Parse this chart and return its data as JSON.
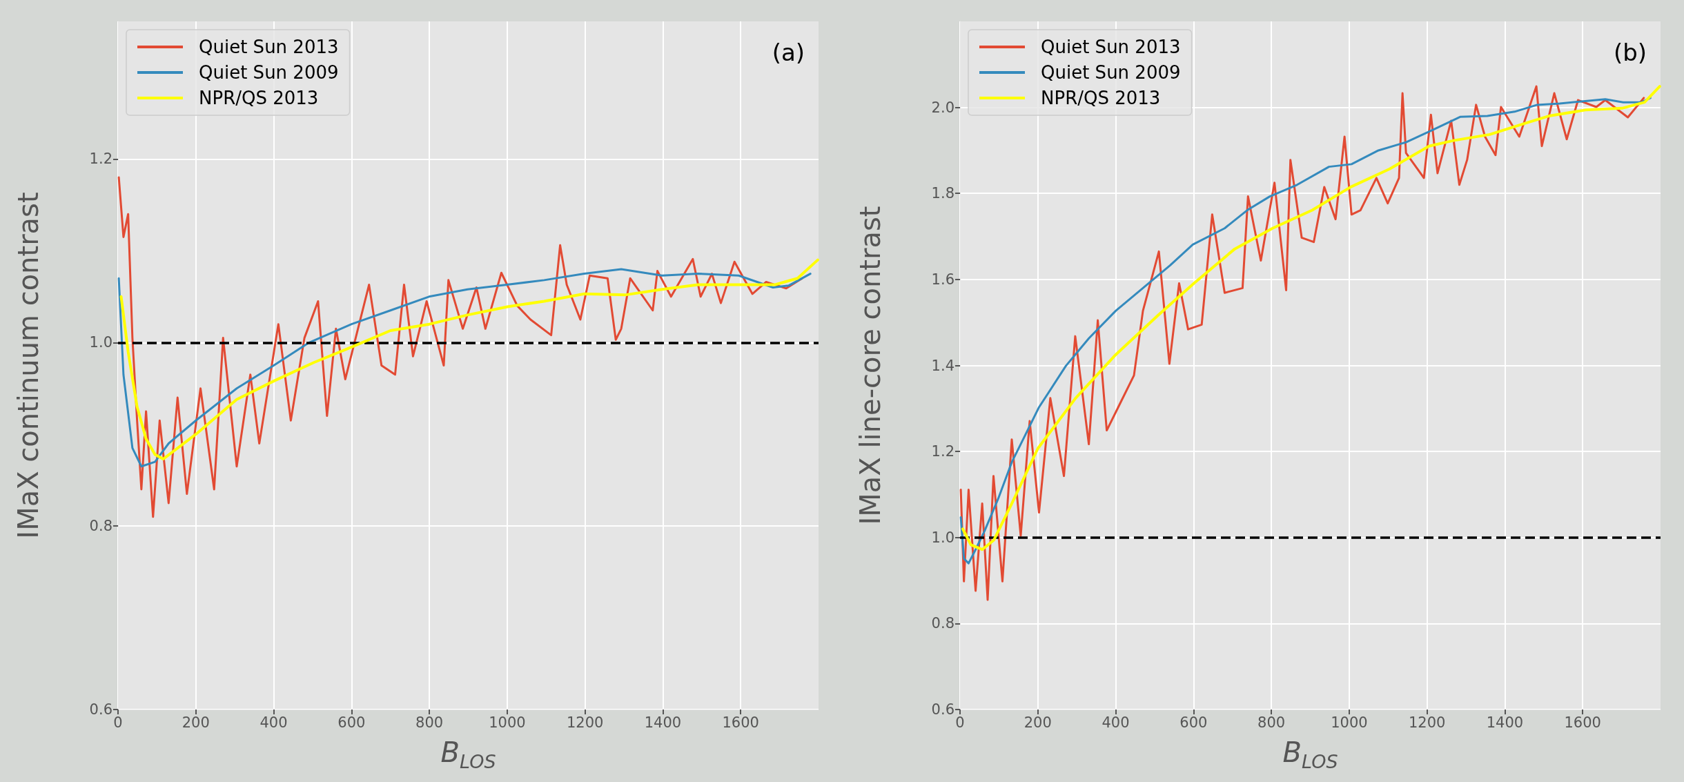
{
  "chart_data": [
    {
      "type": "line",
      "ylabel": "IMaX continuum contrast",
      "xlabel": "B$_{LOS}$",
      "annotations": [
        "(a)"
      ],
      "legend": "top left",
      "grid": true,
      "line_style": "solid",
      "xlim": [
        0,
        1800
      ],
      "xticks": [
        0,
        200,
        400,
        600,
        800,
        1000,
        1200,
        1400,
        1600
      ],
      "ylim": [
        0.6,
        1.35
      ],
      "yticks": [
        {
          "value": 0.6,
          "label": "0.6"
        },
        {
          "value": 0.8,
          "label": "0.8"
        },
        {
          "value": 1.0,
          "label": "1.0"
        },
        {
          "value": 1.2,
          "label": "1.2"
        }
      ],
      "ref_lines": [
        {
          "axis": "y",
          "value": 1.0,
          "color": "#000000",
          "line_style": "dashed"
        }
      ],
      "series": [
        {
          "name": "Quiet Sun 2013",
          "color": "#e24a33",
          "x": [
            2,
            14,
            26,
            37,
            49,
            60,
            72,
            90,
            107,
            130,
            153,
            177,
            212,
            247,
            270,
            305,
            340,
            363,
            412,
            444,
            479,
            514,
            537,
            560,
            584,
            645,
            677,
            712,
            735,
            758,
            793,
            837,
            849,
            886,
            921,
            944,
            985,
            1026,
            1060,
            1113,
            1136,
            1153,
            1188,
            1212,
            1258,
            1279,
            1293,
            1316,
            1374,
            1386,
            1421,
            1477,
            1497,
            1526,
            1549,
            1584,
            1630,
            1665,
            1717,
            1758
          ],
          "values": [
            1.18,
            1.115,
            1.14,
            1.005,
            0.915,
            0.84,
            0.925,
            0.81,
            0.915,
            0.825,
            0.94,
            0.835,
            0.95,
            0.84,
            1.005,
            0.865,
            0.965,
            0.89,
            1.02,
            0.915,
            1.005,
            1.045,
            0.92,
            1.015,
            0.96,
            1.063,
            0.975,
            0.965,
            1.063,
            0.985,
            1.045,
            0.975,
            1.068,
            1.015,
            1.06,
            1.015,
            1.076,
            1.04,
            1.025,
            1.008,
            1.106,
            1.063,
            1.025,
            1.073,
            1.07,
            1.003,
            1.015,
            1.07,
            1.035,
            1.078,
            1.05,
            1.091,
            1.05,
            1.075,
            1.043,
            1.088,
            1.053,
            1.066,
            1.059,
            1.07
          ]
        },
        {
          "name": "Quiet Sun 2009",
          "color": "#348abd",
          "x": [
            2,
            14,
            37,
            60,
            95,
            130,
            200,
            305,
            400,
            491,
            600,
            700,
            799,
            898,
            999,
            1095,
            1198,
            1293,
            1398,
            1491,
            1595,
            1683,
            1723,
            1779
          ],
          "values": [
            1.07,
            0.965,
            0.885,
            0.865,
            0.87,
            0.89,
            0.915,
            0.95,
            0.975,
            1.0,
            1.02,
            1.035,
            1.05,
            1.058,
            1.063,
            1.068,
            1.075,
            1.08,
            1.073,
            1.075,
            1.073,
            1.06,
            1.062,
            1.075
          ]
        },
        {
          "name": "NPR/QS 2013",
          "color": "#ffff00",
          "x": [
            8,
            26,
            49,
            72,
            95,
            116,
            200,
            305,
            400,
            502,
            600,
            700,
            800,
            898,
            1000,
            1095,
            1198,
            1305,
            1398,
            1490,
            1595,
            1688,
            1746,
            1798
          ],
          "values": [
            1.05,
            0.99,
            0.93,
            0.895,
            0.878,
            0.873,
            0.9,
            0.938,
            0.958,
            0.978,
            0.995,
            1.013,
            1.02,
            1.03,
            1.039,
            1.045,
            1.053,
            1.052,
            1.058,
            1.063,
            1.063,
            1.063,
            1.07,
            1.09
          ]
        }
      ]
    },
    {
      "type": "line",
      "ylabel": "IMaX line-core contrast",
      "xlabel": "B$_{LOS}$",
      "annotations": [
        "(b)"
      ],
      "legend": "top left",
      "grid": true,
      "line_style": "solid",
      "xlim": [
        0,
        1800
      ],
      "xticks": [
        0,
        200,
        400,
        600,
        800,
        1000,
        1200,
        1400,
        1600
      ],
      "ylim": [
        0.6,
        2.2
      ],
      "yticks": [
        {
          "value": 0.6,
          "label": "0.6"
        },
        {
          "value": 0.8,
          "label": "0.8"
        },
        {
          "value": 1.0,
          "label": "1.0"
        },
        {
          "value": 1.2,
          "label": "1.2"
        },
        {
          "value": 1.4,
          "label": "1.4"
        },
        {
          "value": 1.6,
          "label": "1.6"
        },
        {
          "value": 1.8,
          "label": "1.8"
        },
        {
          "value": 2.0,
          "label": "2.0"
        }
      ],
      "ref_lines": [
        {
          "axis": "y",
          "value": 1.0,
          "color": "#000000",
          "line_style": "dashed"
        }
      ],
      "series": [
        {
          "name": "Quiet Sun 2013",
          "color": "#e24a33",
          "x": [
            2,
            10,
            22,
            40,
            57,
            71,
            86,
            109,
            133,
            156,
            179,
            203,
            232,
            267,
            296,
            331,
            354,
            377,
            412,
            447,
            470,
            511,
            538,
            563,
            586,
            621,
            648,
            680,
            726,
            740,
            773,
            808,
            838,
            849,
            878,
            909,
            936,
            965,
            988,
            1006,
            1029,
            1070,
            1099,
            1128,
            1137,
            1146,
            1192,
            1210,
            1227,
            1262,
            1283,
            1303,
            1326,
            1349,
            1376,
            1390,
            1437,
            1481,
            1495,
            1527,
            1559,
            1588,
            1635,
            1658,
            1716,
            1757
          ],
          "values": [
            1.111,
            0.898,
            1.111,
            0.876,
            1.079,
            0.855,
            1.143,
            0.898,
            1.228,
            1.004,
            1.271,
            1.058,
            1.324,
            1.143,
            1.468,
            1.217,
            1.505,
            1.249,
            1.313,
            1.377,
            1.527,
            1.665,
            1.404,
            1.591,
            1.484,
            1.495,
            1.751,
            1.569,
            1.58,
            1.793,
            1.644,
            1.825,
            1.575,
            1.878,
            1.697,
            1.687,
            1.815,
            1.74,
            1.932,
            1.751,
            1.761,
            1.836,
            1.777,
            1.836,
            2.033,
            1.894,
            1.836,
            1.983,
            1.847,
            1.969,
            1.82,
            1.878,
            2.006,
            1.932,
            1.889,
            2.001,
            1.932,
            2.049,
            1.91,
            2.033,
            1.926,
            2.017,
            2.001,
            2.017,
            1.977,
            2.022
          ]
        },
        {
          "name": "Quiet Sun 2009",
          "color": "#348abd",
          "x": [
            2,
            10,
            22,
            40,
            63,
            98,
            133,
            168,
            203,
            272,
            331,
            400,
            470,
            540,
            598,
            680,
            738,
            796,
            866,
            948,
            1006,
            1075,
            1146,
            1215,
            1285,
            1355,
            1425,
            1483,
            1541,
            1611,
            1658,
            1704,
            1751,
            1774
          ],
          "values": [
            1.047,
            0.951,
            0.94,
            0.972,
            1.015,
            1.09,
            1.175,
            1.239,
            1.303,
            1.399,
            1.463,
            1.527,
            1.58,
            1.633,
            1.681,
            1.719,
            1.761,
            1.793,
            1.82,
            1.862,
            1.868,
            1.9,
            1.919,
            1.948,
            1.978,
            1.98,
            1.99,
            2.006,
            2.009,
            2.015,
            2.019,
            2.012,
            2.012,
            2.022
          ]
        },
        {
          "name": "NPR/QS 2013",
          "color": "#ffff00",
          "x": [
            7,
            28,
            57,
            87,
            133,
            200,
            297,
            400,
            508,
            601,
            706,
            803,
            905,
            1004,
            1104,
            1205,
            1268,
            1361,
            1455,
            1513,
            1607,
            1701,
            1759,
            1798
          ],
          "values": [
            1.02,
            0.983,
            0.972,
            0.994,
            1.079,
            1.207,
            1.324,
            1.425,
            1.516,
            1.591,
            1.671,
            1.719,
            1.761,
            1.815,
            1.857,
            1.91,
            1.923,
            1.937,
            1.964,
            1.98,
            1.994,
            1.998,
            2.012,
            2.049
          ]
        }
      ]
    }
  ]
}
